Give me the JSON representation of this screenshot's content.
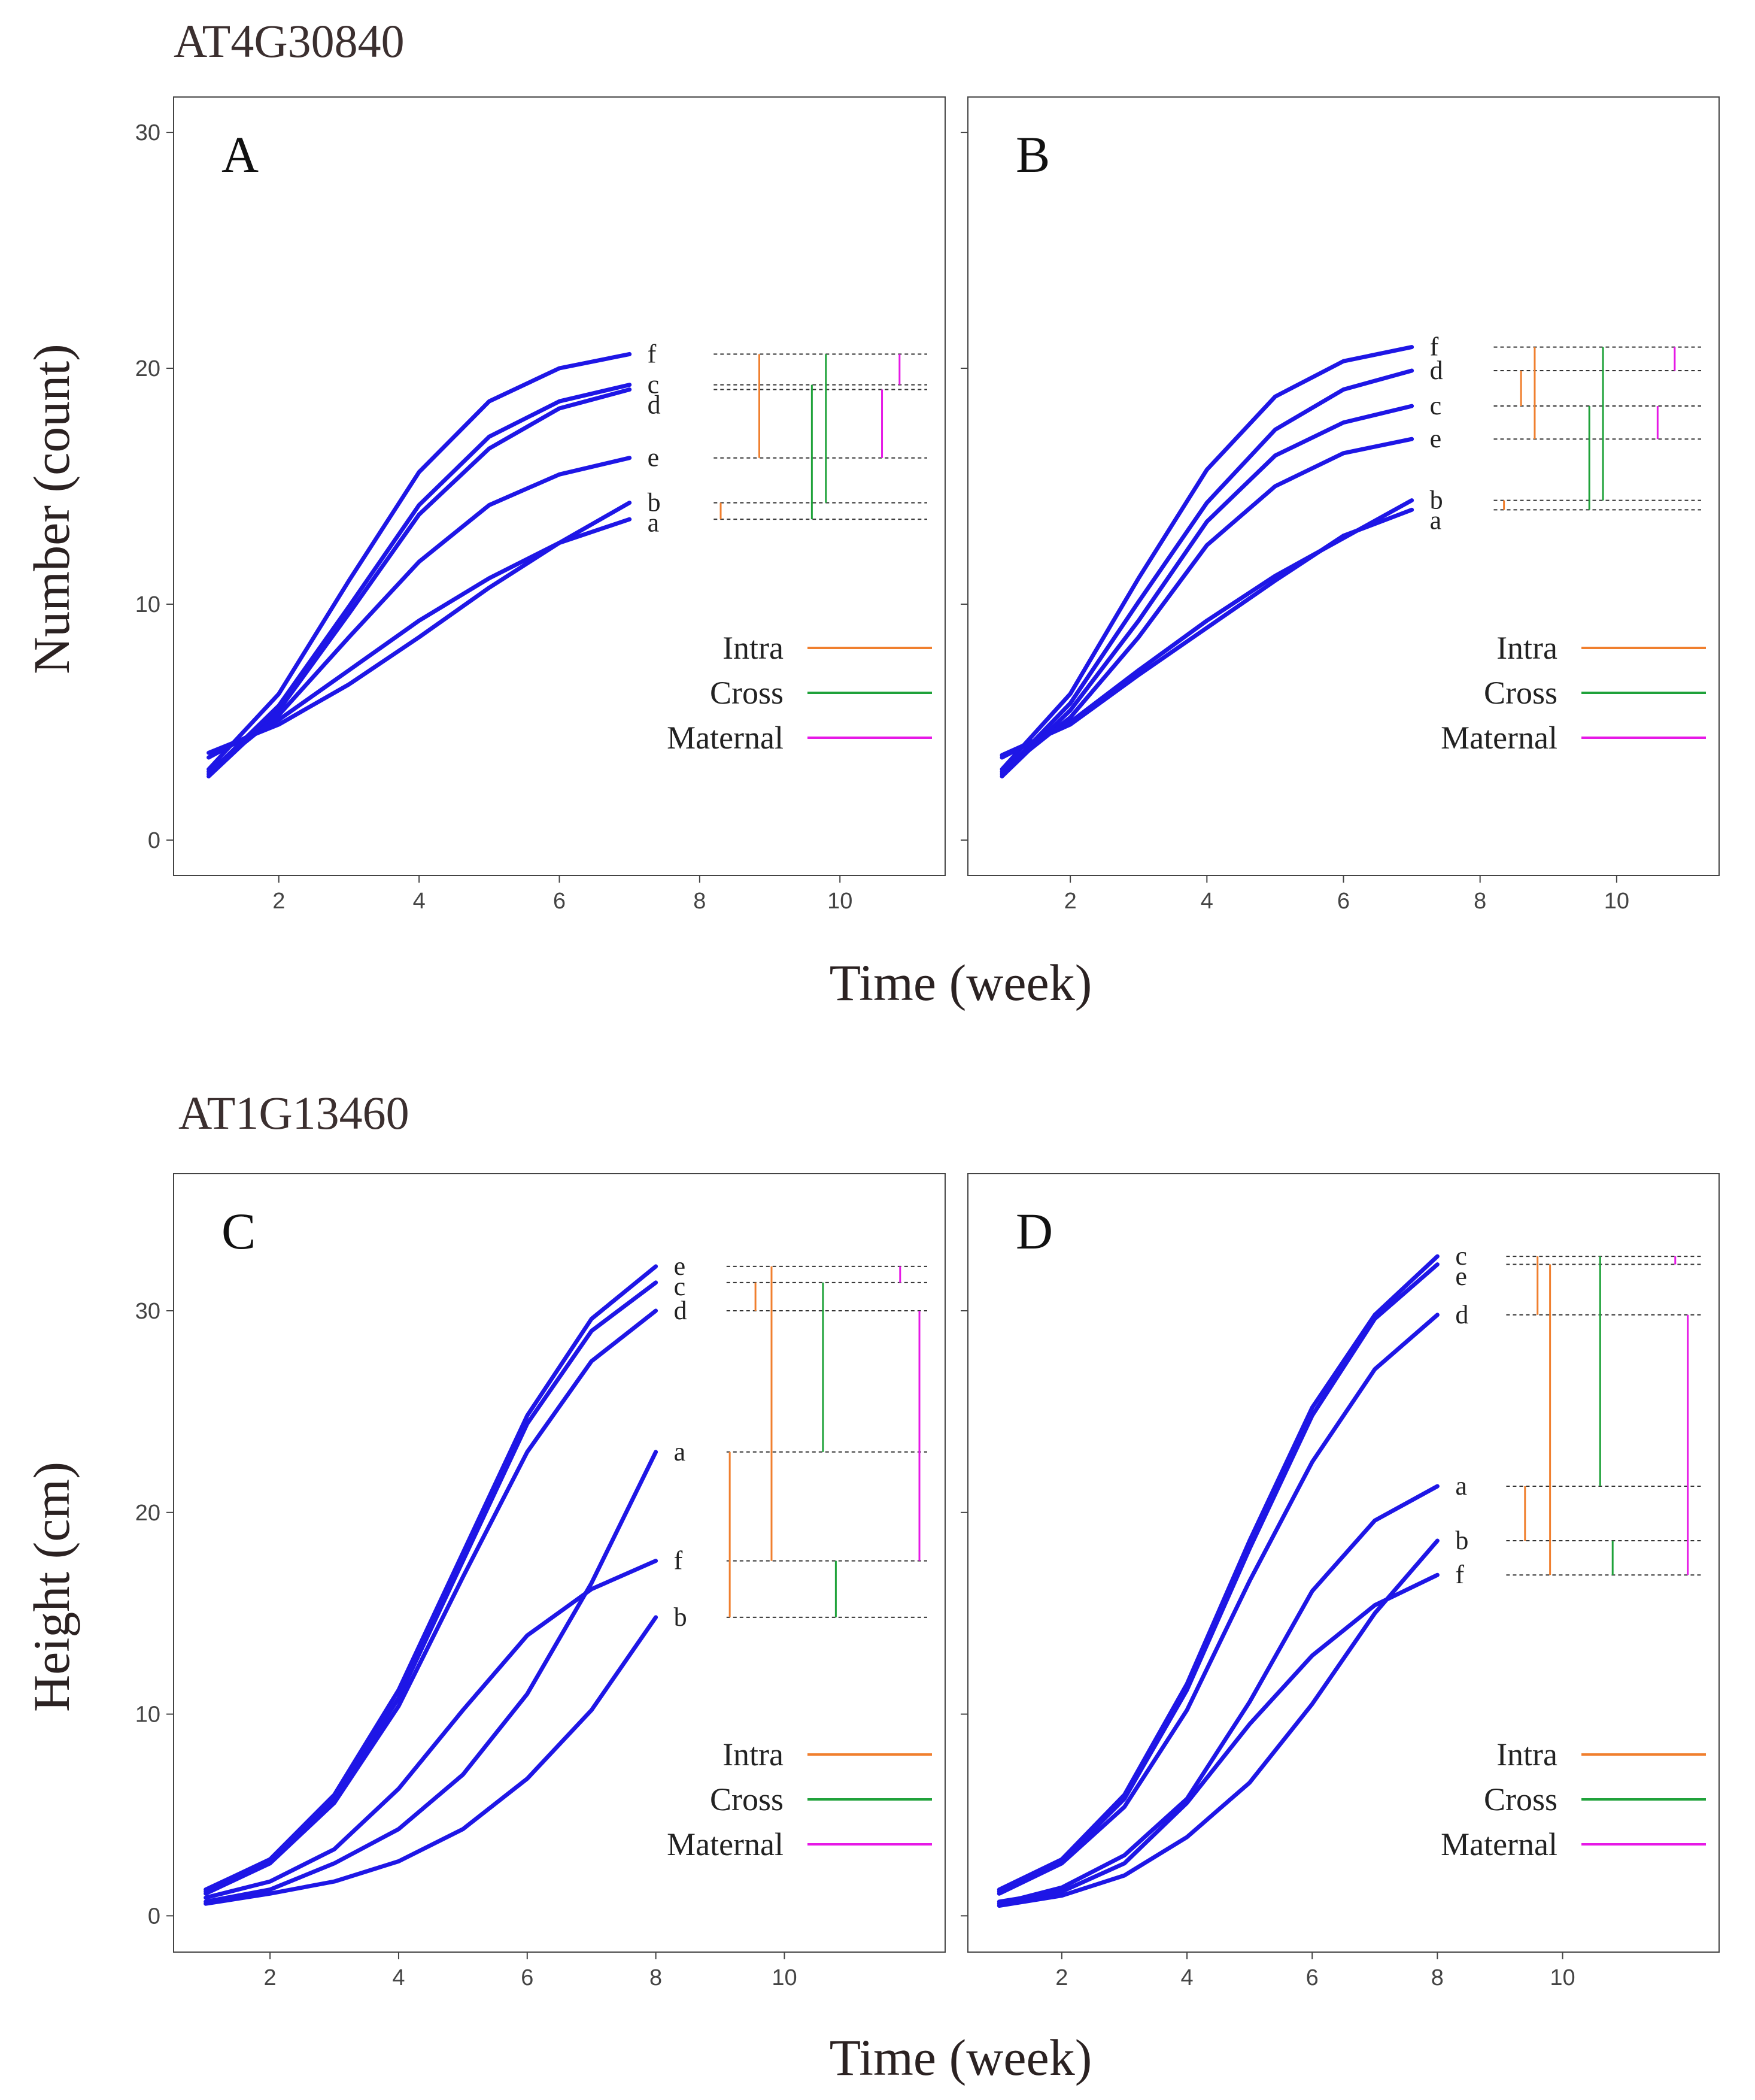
{
  "titles": {
    "gene_top": "AT4G30840",
    "gene_bottom": "AT1G13460"
  },
  "axes": {
    "xlabel_top": "Time (week)",
    "xlabel_bottom": "Time (week)",
    "ylabel_top": "Number (count)",
    "ylabel_bottom": "Height (cm)"
  },
  "legend": {
    "items": [
      {
        "label": "Intra",
        "color": "#f07f2e"
      },
      {
        "label": "Cross",
        "color": "#1fa23a"
      },
      {
        "label": "Maternal",
        "color": "#e619e6"
      }
    ]
  },
  "colors": {
    "curve": "#1e16e6",
    "frame": "#444444"
  },
  "chart_data": [
    {
      "panel": "A",
      "type": "line",
      "xlim": [
        0.5,
        11.5
      ],
      "ylim": [
        -1.5,
        31.5
      ],
      "xticks": [
        2,
        4,
        6,
        8,
        10
      ],
      "yticks": [
        0,
        10,
        20,
        30
      ],
      "series": [
        {
          "name": "f",
          "x": [
            1,
            2,
            3,
            4,
            5,
            6,
            7
          ],
          "values": [
            3.0,
            6.2,
            11.0,
            15.6,
            18.6,
            20.0,
            20.6
          ]
        },
        {
          "name": "c",
          "x": [
            1,
            2,
            3,
            4,
            5,
            6,
            7
          ],
          "values": [
            2.8,
            5.7,
            9.9,
            14.2,
            17.1,
            18.6,
            19.3
          ]
        },
        {
          "name": "d",
          "x": [
            1,
            2,
            3,
            4,
            5,
            6,
            7
          ],
          "values": [
            2.7,
            5.5,
            9.6,
            13.8,
            16.6,
            18.3,
            19.1
          ]
        },
        {
          "name": "e",
          "x": [
            1,
            2,
            3,
            4,
            5,
            6,
            7
          ],
          "values": [
            2.9,
            5.3,
            8.6,
            11.8,
            14.2,
            15.5,
            16.2
          ]
        },
        {
          "name": "b",
          "x": [
            1,
            2,
            3,
            4,
            5,
            6,
            7
          ],
          "values": [
            3.5,
            5.1,
            7.2,
            9.3,
            11.1,
            12.6,
            14.3
          ]
        },
        {
          "name": "a",
          "x": [
            1,
            2,
            3,
            4,
            5,
            6,
            7
          ],
          "values": [
            3.7,
            4.9,
            6.6,
            8.6,
            10.7,
            12.6,
            13.6
          ]
        }
      ],
      "labels": [
        "f",
        "c",
        "d",
        "e",
        "b",
        "a"
      ],
      "brackets": {
        "levels": [
          20.6,
          19.3,
          19.1,
          16.2,
          14.3,
          13.6
        ],
        "spans": [
          {
            "kind": "Intra",
            "x": 8.3,
            "from": 14.3,
            "to": 13.6
          },
          {
            "kind": "Intra",
            "x": 8.85,
            "from": 20.6,
            "to": 16.2
          },
          {
            "kind": "Cross",
            "x": 9.6,
            "from": 19.3,
            "to": 13.6
          },
          {
            "kind": "Cross",
            "x": 9.8,
            "from": 20.6,
            "to": 14.3
          },
          {
            "kind": "Maternal",
            "x": 10.6,
            "from": 19.1,
            "to": 16.2
          },
          {
            "kind": "Maternal",
            "x": 10.85,
            "from": 20.6,
            "to": 19.3
          }
        ]
      }
    },
    {
      "panel": "B",
      "type": "line",
      "xlim": [
        0.5,
        11.5
      ],
      "ylim": [
        -1.5,
        31.5
      ],
      "xticks": [
        2,
        4,
        6,
        8,
        10
      ],
      "yticks": [
        0,
        10,
        20,
        30
      ],
      "series": [
        {
          "name": "f",
          "x": [
            1,
            2,
            3,
            4,
            5,
            6,
            7
          ],
          "values": [
            3.0,
            6.2,
            11.1,
            15.7,
            18.8,
            20.3,
            20.9
          ]
        },
        {
          "name": "d",
          "x": [
            1,
            2,
            3,
            4,
            5,
            6,
            7
          ],
          "values": [
            2.8,
            5.8,
            10.1,
            14.3,
            17.4,
            19.1,
            19.9
          ]
        },
        {
          "name": "c",
          "x": [
            1,
            2,
            3,
            4,
            5,
            6,
            7
          ],
          "values": [
            2.7,
            5.5,
            9.3,
            13.5,
            16.3,
            17.7,
            18.4
          ]
        },
        {
          "name": "e",
          "x": [
            1,
            2,
            3,
            4,
            5,
            6,
            7
          ],
          "values": [
            2.9,
            5.2,
            8.6,
            12.5,
            15.0,
            16.4,
            17.0
          ]
        },
        {
          "name": "b",
          "x": [
            1,
            2,
            3,
            4,
            5,
            6,
            7
          ],
          "values": [
            3.5,
            5.0,
            7.2,
            9.3,
            11.2,
            12.8,
            14.4
          ]
        },
        {
          "name": "a",
          "x": [
            1,
            2,
            3,
            4,
            5,
            6,
            7
          ],
          "values": [
            3.6,
            4.9,
            7.0,
            9.0,
            11.0,
            12.9,
            14.0
          ]
        }
      ],
      "labels": [
        "f",
        "d",
        "c",
        "e",
        "b",
        "a"
      ],
      "brackets": {
        "levels": [
          20.9,
          19.9,
          18.4,
          17.0,
          14.4,
          14.0
        ],
        "spans": [
          {
            "kind": "Intra",
            "x": 8.35,
            "from": 14.4,
            "to": 14.0
          },
          {
            "kind": "Intra",
            "x": 8.6,
            "from": 19.9,
            "to": 18.4
          },
          {
            "kind": "Intra",
            "x": 8.8,
            "from": 20.9,
            "to": 17.0
          },
          {
            "kind": "Cross",
            "x": 9.6,
            "from": 18.4,
            "to": 14.0
          },
          {
            "kind": "Cross",
            "x": 9.8,
            "from": 20.9,
            "to": 14.4
          },
          {
            "kind": "Maternal",
            "x": 10.6,
            "from": 18.4,
            "to": 17.0
          },
          {
            "kind": "Maternal",
            "x": 10.85,
            "from": 20.9,
            "to": 19.9
          }
        ]
      }
    },
    {
      "panel": "C",
      "type": "line",
      "xlim": [
        0.5,
        12.5
      ],
      "ylim": [
        -1.8,
        36.8
      ],
      "xticks": [
        2,
        4,
        6,
        8,
        10
      ],
      "yticks": [
        0,
        10,
        20,
        30
      ],
      "series": [
        {
          "name": "e",
          "x": [
            1,
            2,
            3,
            4,
            5,
            6,
            7,
            8
          ],
          "values": [
            1.3,
            2.8,
            6.0,
            11.2,
            18.0,
            24.8,
            29.6,
            32.2
          ]
        },
        {
          "name": "c",
          "x": [
            1,
            2,
            3,
            4,
            5,
            6,
            7,
            8
          ],
          "values": [
            1.2,
            2.7,
            5.8,
            10.8,
            17.6,
            24.4,
            29.0,
            31.4
          ]
        },
        {
          "name": "d",
          "x": [
            1,
            2,
            3,
            4,
            5,
            6,
            7,
            8
          ],
          "values": [
            1.1,
            2.6,
            5.6,
            10.4,
            16.8,
            23.0,
            27.5,
            30.0
          ]
        },
        {
          "name": "a",
          "x": [
            1,
            2,
            3,
            4,
            5,
            6,
            7,
            8
          ],
          "values": [
            0.7,
            1.3,
            2.6,
            4.3,
            7.0,
            11.0,
            16.5,
            23.0
          ]
        },
        {
          "name": "f",
          "x": [
            1,
            2,
            3,
            4,
            5,
            6,
            7,
            8
          ],
          "values": [
            0.9,
            1.7,
            3.3,
            6.3,
            10.2,
            13.9,
            16.2,
            17.6
          ]
        },
        {
          "name": "b",
          "x": [
            1,
            2,
            3,
            4,
            5,
            6,
            7,
            8
          ],
          "values": [
            0.6,
            1.1,
            1.7,
            2.7,
            4.3,
            6.8,
            10.2,
            14.8
          ]
        }
      ],
      "labels": [
        "e",
        "c",
        "d",
        "a",
        "f",
        "b"
      ],
      "brackets": {
        "levels": [
          32.2,
          31.4,
          30.0,
          23.0,
          17.6,
          14.8
        ],
        "spans": [
          {
            "kind": "Intra",
            "x": 9.15,
            "from": 23.0,
            "to": 14.8
          },
          {
            "kind": "Intra",
            "x": 9.55,
            "from": 31.4,
            "to": 30.0
          },
          {
            "kind": "Intra",
            "x": 9.8,
            "from": 32.2,
            "to": 17.6
          },
          {
            "kind": "Cross",
            "x": 10.6,
            "from": 31.4,
            "to": 23.0
          },
          {
            "kind": "Cross",
            "x": 10.8,
            "from": 17.6,
            "to": 14.8
          },
          {
            "kind": "Maternal",
            "x": 11.8,
            "from": 32.2,
            "to": 31.4
          },
          {
            "kind": "Maternal",
            "x": 12.1,
            "from": 30.0,
            "to": 17.6
          }
        ]
      }
    },
    {
      "panel": "D",
      "type": "line",
      "xlim": [
        0.5,
        12.5
      ],
      "ylim": [
        -1.8,
        36.8
      ],
      "xticks": [
        2,
        4,
        6,
        8,
        10
      ],
      "yticks": [
        0,
        10,
        20,
        30
      ],
      "series": [
        {
          "name": "c",
          "x": [
            1,
            2,
            3,
            4,
            5,
            6,
            7,
            8
          ],
          "values": [
            1.3,
            2.8,
            6.0,
            11.5,
            18.6,
            25.2,
            29.8,
            32.7
          ]
        },
        {
          "name": "e",
          "x": [
            1,
            2,
            3,
            4,
            5,
            6,
            7,
            8
          ],
          "values": [
            1.2,
            2.7,
            5.8,
            11.2,
            18.2,
            24.8,
            29.6,
            32.3
          ]
        },
        {
          "name": "d",
          "x": [
            1,
            2,
            3,
            4,
            5,
            6,
            7,
            8
          ],
          "values": [
            1.1,
            2.6,
            5.4,
            10.2,
            16.6,
            22.5,
            27.1,
            29.8
          ]
        },
        {
          "name": "a",
          "x": [
            1,
            2,
            3,
            4,
            5,
            6,
            7,
            8
          ],
          "values": [
            0.6,
            1.4,
            3.0,
            5.8,
            10.6,
            16.1,
            19.6,
            21.3
          ]
        },
        {
          "name": "b",
          "x": [
            1,
            2,
            3,
            4,
            5,
            6,
            7,
            8
          ],
          "values": [
            0.5,
            1.0,
            2.0,
            3.9,
            6.6,
            10.5,
            15.0,
            18.6
          ]
        },
        {
          "name": "f",
          "x": [
            1,
            2,
            3,
            4,
            5,
            6,
            7,
            8
          ],
          "values": [
            0.7,
            1.2,
            2.6,
            5.6,
            9.5,
            12.9,
            15.4,
            16.9
          ]
        }
      ],
      "labels": [
        "c",
        "e",
        "d",
        "a",
        "b",
        "f"
      ],
      "brackets": {
        "levels": [
          32.7,
          32.3,
          29.8,
          21.3,
          18.6,
          16.9
        ],
        "spans": [
          {
            "kind": "Intra",
            "x": 9.4,
            "from": 21.3,
            "to": 18.6
          },
          {
            "kind": "Intra",
            "x": 9.6,
            "from": 32.7,
            "to": 29.8
          },
          {
            "kind": "Intra",
            "x": 9.8,
            "from": 32.3,
            "to": 16.9
          },
          {
            "kind": "Cross",
            "x": 10.6,
            "from": 32.7,
            "to": 21.3
          },
          {
            "kind": "Cross",
            "x": 10.8,
            "from": 18.6,
            "to": 16.9
          },
          {
            "kind": "Maternal",
            "x": 11.8,
            "from": 32.7,
            "to": 32.3
          },
          {
            "kind": "Maternal",
            "x": 12.0,
            "from": 29.8,
            "to": 16.9
          }
        ]
      }
    }
  ]
}
